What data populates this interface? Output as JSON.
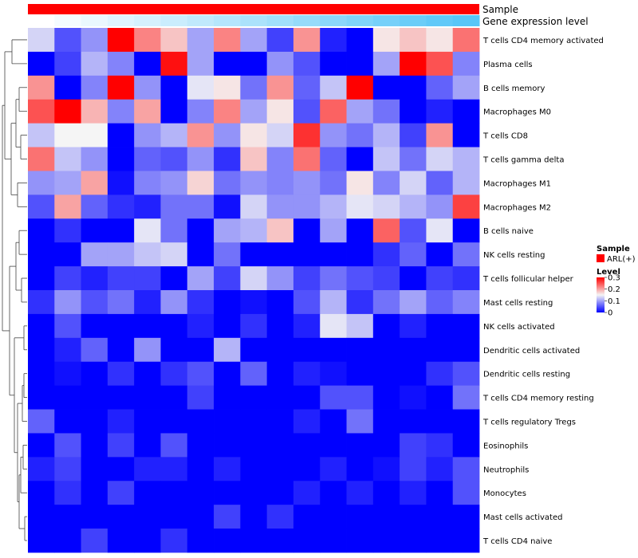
{
  "chart_data": {
    "type": "heatmap",
    "annotation_tracks": [
      "Sample",
      "Gene expression level"
    ],
    "rows": [
      "T cells CD4 memory activated",
      "Plasma cells",
      "B cells memory",
      "Macrophages M0",
      "T cells CD8",
      "T cells gamma delta",
      "Macrophages M1",
      "Macrophages M2",
      "B cells naive",
      "NK cells resting",
      "T cells follicular helper",
      "Mast cells resting",
      "NK cells activated",
      "Dendritic cells activated",
      "Dendritic cells resting",
      "T cells CD4 memory resting",
      "T cells regulatory  Tregs",
      "Eosinophils",
      "Neutrophils",
      "Monocytes",
      "Mast cells activated",
      "T cells CD4 naive"
    ],
    "values": [
      [
        0.13,
        0.05,
        0.09,
        0.3,
        0.22,
        0.18,
        0.1,
        0.22,
        0.1,
        0.04,
        0.21,
        0.02,
        0.0,
        0.16,
        0.18,
        0.16,
        0.23
      ],
      [
        0.0,
        0.04,
        0.11,
        0.08,
        0.0,
        0.29,
        0.1,
        0.0,
        0.0,
        0.09,
        0.05,
        0.0,
        0.0,
        0.1,
        0.3,
        0.25,
        0.08
      ],
      [
        0.21,
        0.0,
        0.08,
        0.3,
        0.09,
        0.0,
        0.14,
        0.16,
        0.07,
        0.21,
        0.06,
        0.12,
        0.3,
        0.0,
        0.0,
        0.06,
        0.1
      ],
      [
        0.25,
        0.3,
        0.19,
        0.08,
        0.2,
        0.0,
        0.08,
        0.22,
        0.1,
        0.16,
        0.05,
        0.24,
        0.1,
        0.07,
        0.0,
        0.02,
        0.0
      ],
      [
        0.12,
        0.15,
        0.15,
        0.0,
        0.09,
        0.11,
        0.21,
        0.09,
        0.16,
        0.13,
        0.27,
        0.09,
        0.07,
        0.11,
        0.04,
        0.21,
        0.0
      ],
      [
        0.23,
        0.12,
        0.09,
        0.0,
        0.06,
        0.05,
        0.09,
        0.03,
        0.18,
        0.08,
        0.23,
        0.06,
        0.0,
        0.12,
        0.07,
        0.13,
        0.11
      ],
      [
        0.09,
        0.1,
        0.2,
        0.01,
        0.08,
        0.09,
        0.17,
        0.07,
        0.09,
        0.08,
        0.09,
        0.07,
        0.16,
        0.08,
        0.13,
        0.06,
        0.11
      ],
      [
        0.05,
        0.2,
        0.06,
        0.03,
        0.02,
        0.07,
        0.07,
        0.01,
        0.13,
        0.09,
        0.09,
        0.11,
        0.14,
        0.13,
        0.11,
        0.09,
        0.26
      ],
      [
        0.0,
        0.03,
        0.0,
        0.0,
        0.14,
        0.07,
        0.0,
        0.1,
        0.11,
        0.18,
        0.0,
        0.1,
        0.0,
        0.24,
        0.05,
        0.14,
        0.0
      ],
      [
        0.0,
        0.0,
        0.1,
        0.1,
        0.12,
        0.13,
        0.0,
        0.07,
        0.0,
        0.0,
        0.0,
        0.0,
        0.0,
        0.03,
        0.06,
        0.0,
        0.07
      ],
      [
        0.0,
        0.04,
        0.02,
        0.04,
        0.04,
        0.0,
        0.1,
        0.04,
        0.13,
        0.09,
        0.04,
        0.07,
        0.05,
        0.04,
        0.0,
        0.04,
        0.03
      ],
      [
        0.03,
        0.09,
        0.05,
        0.07,
        0.02,
        0.09,
        0.03,
        0.0,
        0.01,
        0.0,
        0.05,
        0.11,
        0.03,
        0.07,
        0.1,
        0.06,
        0.08
      ],
      [
        0.0,
        0.05,
        0.0,
        0.0,
        0.0,
        0.0,
        0.02,
        0.0,
        0.03,
        0.0,
        0.02,
        0.14,
        0.12,
        0.0,
        0.02,
        0.0,
        0.0
      ],
      [
        0.0,
        0.02,
        0.06,
        0.0,
        0.09,
        0.0,
        0.0,
        0.11,
        0.0,
        0.0,
        0.0,
        0.0,
        0.0,
        0.0,
        0.0,
        0.0,
        0.0
      ],
      [
        0.0,
        0.01,
        0.0,
        0.03,
        0.0,
        0.03,
        0.05,
        0.0,
        0.06,
        0.0,
        0.02,
        0.01,
        0.0,
        0.0,
        0.0,
        0.03,
        0.05
      ],
      [
        0.0,
        0.0,
        0.0,
        0.0,
        0.0,
        0.0,
        0.04,
        0.0,
        0.0,
        0.0,
        0.0,
        0.05,
        0.05,
        0.0,
        0.01,
        0.0,
        0.07
      ],
      [
        0.06,
        0.0,
        0.0,
        0.02,
        0.0,
        0.0,
        0.0,
        0.0,
        0.0,
        0.0,
        0.02,
        0.0,
        0.07,
        0.0,
        0.0,
        0.0,
        0.0
      ],
      [
        0.0,
        0.05,
        0.0,
        0.04,
        0.0,
        0.05,
        0.0,
        0.0,
        0.0,
        0.0,
        0.0,
        0.0,
        0.0,
        0.0,
        0.04,
        0.03,
        0.0
      ],
      [
        0.02,
        0.04,
        0.0,
        0.0,
        0.02,
        0.02,
        0.0,
        0.02,
        0.0,
        0.0,
        0.0,
        0.02,
        0.0,
        0.01,
        0.04,
        0.02,
        0.05
      ],
      [
        0.0,
        0.03,
        0.0,
        0.04,
        0.0,
        0.0,
        0.0,
        0.0,
        0.0,
        0.0,
        0.02,
        0.0,
        0.02,
        0.0,
        0.02,
        0.0,
        0.05
      ],
      [
        0.0,
        0.0,
        0.0,
        0.0,
        0.0,
        0.0,
        0.0,
        0.04,
        0.0,
        0.03,
        0.0,
        0.0,
        0.0,
        0.0,
        0.0,
        0.0,
        0.0
      ],
      [
        0.0,
        0.0,
        0.04,
        0.0,
        0.0,
        0.03,
        0.0,
        0.0,
        0.0,
        0.0,
        0.0,
        0.0,
        0.0,
        0.0,
        0.0,
        0.0,
        0.0
      ]
    ],
    "gene_expression_level": [
      0.0,
      0.06,
      0.12,
      0.18,
      0.24,
      0.3,
      0.36,
      0.42,
      0.48,
      0.54,
      0.6,
      0.66,
      0.72,
      0.78,
      0.84,
      0.9,
      0.95
    ],
    "colorscale": {
      "min": 0,
      "max": 0.3,
      "low": "#0000ff",
      "mid": "#f5f5f5",
      "high": "#ff0000"
    },
    "sample_color": "#ff0000",
    "expression_track_colors": {
      "low": "#ffffff",
      "high": "#4fc3f7"
    },
    "legend": {
      "sample_title": "Sample",
      "sample_label": "ARL(+)",
      "level_title": "Level",
      "level_ticks": [
        "0.3",
        "0.2",
        "0.1",
        "0"
      ]
    }
  }
}
